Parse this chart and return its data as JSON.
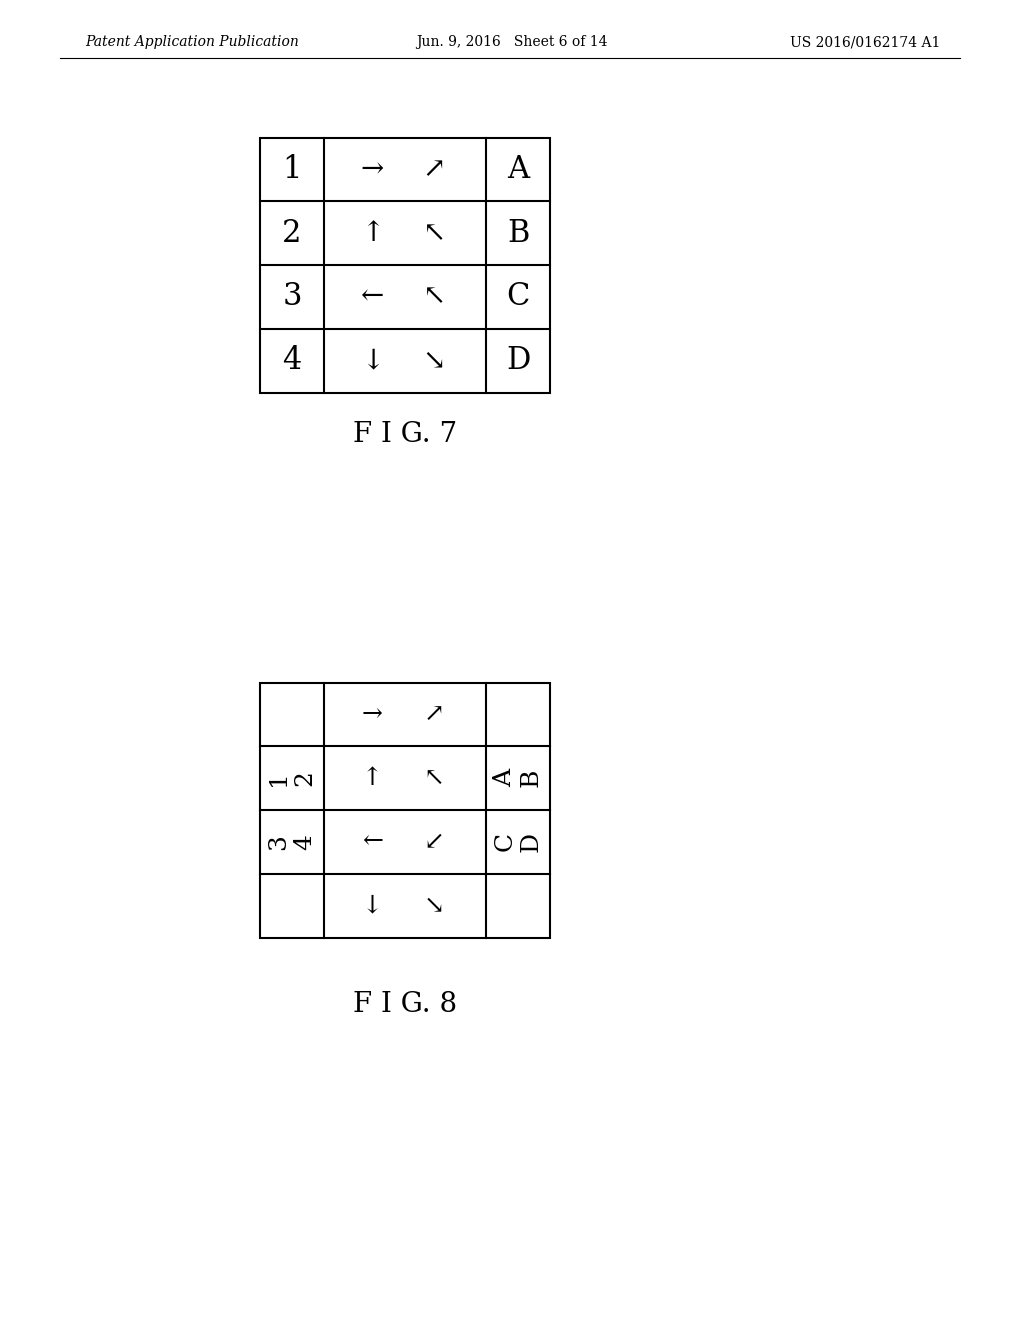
{
  "bg_color": "#ffffff",
  "header_left": "Patent Application Publication",
  "header_mid": "Jun. 9, 2016   Sheet 6 of 14",
  "header_right": "US 2016/0162174 A1",
  "header_fontsize": 10,
  "fig7_label": "F I G. 7",
  "fig8_label": "F I G. 8",
  "fig_caption_fontsize": 20,
  "fig7": {
    "row_labels": [
      "1",
      "2",
      "3",
      "4"
    ],
    "col3_labels": [
      "A",
      "B",
      "C",
      "D"
    ],
    "row_arrows": [
      [
        "→",
        "↗"
      ],
      [
        "↑",
        "↖"
      ],
      [
        "←",
        "↖"
      ],
      [
        "↓",
        "↘"
      ]
    ],
    "label_fontsize": 22,
    "arrow_fontsize": 20
  },
  "fig8": {
    "row_arrows": [
      [
        "→",
        "↗"
      ],
      [
        "↑",
        "↖"
      ],
      [
        "←",
        "↙"
      ],
      [
        "↓",
        "↘"
      ]
    ],
    "label_fontsize": 18,
    "arrow_fontsize": 18
  }
}
